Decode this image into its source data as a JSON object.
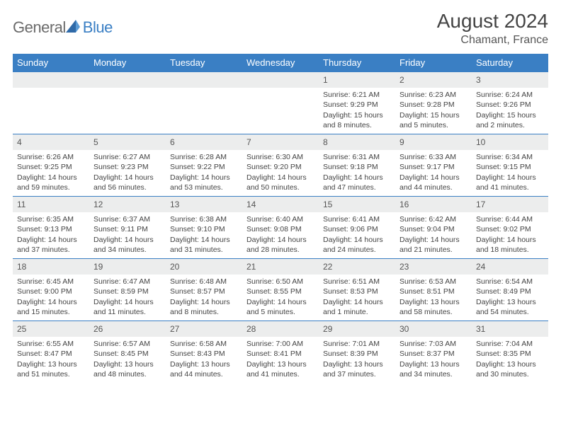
{
  "logo": {
    "text1": "General",
    "text2": "Blue"
  },
  "title": "August 2024",
  "location": "Chamant, France",
  "colors": {
    "header_bg": "#3a7fc4",
    "header_text": "#ffffff",
    "daynum_bg": "#eceded",
    "body_text": "#444444",
    "logo_gray": "#6b6b6b",
    "logo_blue": "#3a7fc4",
    "row_border": "#3a7fc4"
  },
  "weekdays": [
    "Sunday",
    "Monday",
    "Tuesday",
    "Wednesday",
    "Thursday",
    "Friday",
    "Saturday"
  ],
  "weeks": [
    [
      {
        "n": "",
        "sr": "",
        "ss": "",
        "dl": ""
      },
      {
        "n": "",
        "sr": "",
        "ss": "",
        "dl": ""
      },
      {
        "n": "",
        "sr": "",
        "ss": "",
        "dl": ""
      },
      {
        "n": "",
        "sr": "",
        "ss": "",
        "dl": ""
      },
      {
        "n": "1",
        "sr": "Sunrise: 6:21 AM",
        "ss": "Sunset: 9:29 PM",
        "dl": "Daylight: 15 hours and 8 minutes."
      },
      {
        "n": "2",
        "sr": "Sunrise: 6:23 AM",
        "ss": "Sunset: 9:28 PM",
        "dl": "Daylight: 15 hours and 5 minutes."
      },
      {
        "n": "3",
        "sr": "Sunrise: 6:24 AM",
        "ss": "Sunset: 9:26 PM",
        "dl": "Daylight: 15 hours and 2 minutes."
      }
    ],
    [
      {
        "n": "4",
        "sr": "Sunrise: 6:26 AM",
        "ss": "Sunset: 9:25 PM",
        "dl": "Daylight: 14 hours and 59 minutes."
      },
      {
        "n": "5",
        "sr": "Sunrise: 6:27 AM",
        "ss": "Sunset: 9:23 PM",
        "dl": "Daylight: 14 hours and 56 minutes."
      },
      {
        "n": "6",
        "sr": "Sunrise: 6:28 AM",
        "ss": "Sunset: 9:22 PM",
        "dl": "Daylight: 14 hours and 53 minutes."
      },
      {
        "n": "7",
        "sr": "Sunrise: 6:30 AM",
        "ss": "Sunset: 9:20 PM",
        "dl": "Daylight: 14 hours and 50 minutes."
      },
      {
        "n": "8",
        "sr": "Sunrise: 6:31 AM",
        "ss": "Sunset: 9:18 PM",
        "dl": "Daylight: 14 hours and 47 minutes."
      },
      {
        "n": "9",
        "sr": "Sunrise: 6:33 AM",
        "ss": "Sunset: 9:17 PM",
        "dl": "Daylight: 14 hours and 44 minutes."
      },
      {
        "n": "10",
        "sr": "Sunrise: 6:34 AM",
        "ss": "Sunset: 9:15 PM",
        "dl": "Daylight: 14 hours and 41 minutes."
      }
    ],
    [
      {
        "n": "11",
        "sr": "Sunrise: 6:35 AM",
        "ss": "Sunset: 9:13 PM",
        "dl": "Daylight: 14 hours and 37 minutes."
      },
      {
        "n": "12",
        "sr": "Sunrise: 6:37 AM",
        "ss": "Sunset: 9:11 PM",
        "dl": "Daylight: 14 hours and 34 minutes."
      },
      {
        "n": "13",
        "sr": "Sunrise: 6:38 AM",
        "ss": "Sunset: 9:10 PM",
        "dl": "Daylight: 14 hours and 31 minutes."
      },
      {
        "n": "14",
        "sr": "Sunrise: 6:40 AM",
        "ss": "Sunset: 9:08 PM",
        "dl": "Daylight: 14 hours and 28 minutes."
      },
      {
        "n": "15",
        "sr": "Sunrise: 6:41 AM",
        "ss": "Sunset: 9:06 PM",
        "dl": "Daylight: 14 hours and 24 minutes."
      },
      {
        "n": "16",
        "sr": "Sunrise: 6:42 AM",
        "ss": "Sunset: 9:04 PM",
        "dl": "Daylight: 14 hours and 21 minutes."
      },
      {
        "n": "17",
        "sr": "Sunrise: 6:44 AM",
        "ss": "Sunset: 9:02 PM",
        "dl": "Daylight: 14 hours and 18 minutes."
      }
    ],
    [
      {
        "n": "18",
        "sr": "Sunrise: 6:45 AM",
        "ss": "Sunset: 9:00 PM",
        "dl": "Daylight: 14 hours and 15 minutes."
      },
      {
        "n": "19",
        "sr": "Sunrise: 6:47 AM",
        "ss": "Sunset: 8:59 PM",
        "dl": "Daylight: 14 hours and 11 minutes."
      },
      {
        "n": "20",
        "sr": "Sunrise: 6:48 AM",
        "ss": "Sunset: 8:57 PM",
        "dl": "Daylight: 14 hours and 8 minutes."
      },
      {
        "n": "21",
        "sr": "Sunrise: 6:50 AM",
        "ss": "Sunset: 8:55 PM",
        "dl": "Daylight: 14 hours and 5 minutes."
      },
      {
        "n": "22",
        "sr": "Sunrise: 6:51 AM",
        "ss": "Sunset: 8:53 PM",
        "dl": "Daylight: 14 hours and 1 minute."
      },
      {
        "n": "23",
        "sr": "Sunrise: 6:53 AM",
        "ss": "Sunset: 8:51 PM",
        "dl": "Daylight: 13 hours and 58 minutes."
      },
      {
        "n": "24",
        "sr": "Sunrise: 6:54 AM",
        "ss": "Sunset: 8:49 PM",
        "dl": "Daylight: 13 hours and 54 minutes."
      }
    ],
    [
      {
        "n": "25",
        "sr": "Sunrise: 6:55 AM",
        "ss": "Sunset: 8:47 PM",
        "dl": "Daylight: 13 hours and 51 minutes."
      },
      {
        "n": "26",
        "sr": "Sunrise: 6:57 AM",
        "ss": "Sunset: 8:45 PM",
        "dl": "Daylight: 13 hours and 48 minutes."
      },
      {
        "n": "27",
        "sr": "Sunrise: 6:58 AM",
        "ss": "Sunset: 8:43 PM",
        "dl": "Daylight: 13 hours and 44 minutes."
      },
      {
        "n": "28",
        "sr": "Sunrise: 7:00 AM",
        "ss": "Sunset: 8:41 PM",
        "dl": "Daylight: 13 hours and 41 minutes."
      },
      {
        "n": "29",
        "sr": "Sunrise: 7:01 AM",
        "ss": "Sunset: 8:39 PM",
        "dl": "Daylight: 13 hours and 37 minutes."
      },
      {
        "n": "30",
        "sr": "Sunrise: 7:03 AM",
        "ss": "Sunset: 8:37 PM",
        "dl": "Daylight: 13 hours and 34 minutes."
      },
      {
        "n": "31",
        "sr": "Sunrise: 7:04 AM",
        "ss": "Sunset: 8:35 PM",
        "dl": "Daylight: 13 hours and 30 minutes."
      }
    ]
  ]
}
